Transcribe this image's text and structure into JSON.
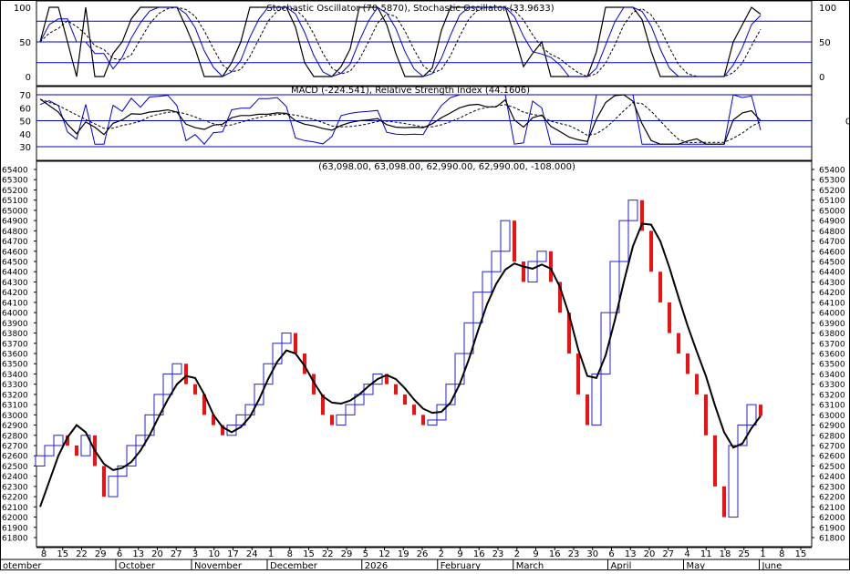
{
  "stoch_panel": {
    "title": "Stochastic Oscillator (70.5870), Stochastic Oscillator (33.9633)",
    "levels": [
      100,
      80,
      50,
      20,
      0
    ],
    "tick_labels": [
      "100",
      "50",
      "0"
    ]
  },
  "macd_panel": {
    "title": "MACD (-224.541), Relative Strength Index (44.1606)",
    "left_ticks": [
      "70",
      "60",
      "50",
      "40",
      "30"
    ],
    "right_ticks": [
      "0"
    ]
  },
  "price_panel": {
    "title": "(63,098.00, 63,098.00, 62,990.00, 62,990.00, -108.000)"
  },
  "colors": {
    "up_bar": "#2222cc",
    "down_bar": "#ee1111",
    "level_line": "#0000cc",
    "ma_line": "#000000",
    "frame": "#000000"
  },
  "x_axis": {
    "day_labels": [
      "8",
      "15",
      "22",
      "29",
      "6",
      "13",
      "20",
      "27",
      "3",
      "10",
      "17",
      "24",
      "1",
      "8",
      "15",
      "22",
      "29",
      "5",
      "12",
      "19",
      "26",
      "2",
      "9",
      "16",
      "23",
      "2",
      "9",
      "16",
      "23",
      "30",
      "6",
      "13",
      "20",
      "27",
      "4",
      "11",
      "18",
      "25",
      "1",
      "8",
      "15"
    ],
    "month_labels": [
      "otember",
      "October",
      "November",
      "December",
      "2026",
      "February",
      "March",
      "April",
      "May",
      "June"
    ]
  },
  "chart_data": {
    "type": "bar",
    "series": [
      {
        "name": "Stochastic Oscillator",
        "value": 70.587
      },
      {
        "name": "Stochastic Oscillator",
        "value": 33.9633
      },
      {
        "name": "MACD",
        "value": -224.541
      },
      {
        "name": "Relative Strength Index",
        "value": 44.1606
      }
    ],
    "last_bar": {
      "open": 63098.0,
      "high": 63098.0,
      "low": 62990.0,
      "close": 62990.0,
      "change": -108.0
    },
    "y_ticks": [
      "65400",
      "65300",
      "65200",
      "65100",
      "65000",
      "64900",
      "64800",
      "64700",
      "64600",
      "64500",
      "64400",
      "64300",
      "64200",
      "64100",
      "64000",
      "63900",
      "63800",
      "63700",
      "63600",
      "63500",
      "63400",
      "63300",
      "63200",
      "63100",
      "63000",
      "62900",
      "62800",
      "62700",
      "62600",
      "62500",
      "62400",
      "62300",
      "62200",
      "62100",
      "62000",
      "61900",
      "61800"
    ],
    "ylim": [
      61800,
      65400
    ],
    "closes": [
      62600,
      62700,
      62800,
      62700,
      62600,
      62800,
      62500,
      62200,
      62400,
      62500,
      62700,
      62800,
      63000,
      63200,
      63400,
      63500,
      63300,
      63200,
      63000,
      62900,
      62800,
      62900,
      63000,
      63100,
      63300,
      63500,
      63700,
      63800,
      63600,
      63400,
      63200,
      63000,
      62900,
      63000,
      63100,
      63200,
      63300,
      63400,
      63300,
      63200,
      63100,
      63000,
      62900,
      62950,
      63100,
      63300,
      63600,
      63900,
      64200,
      64400,
      64600,
      64900,
      64500,
      64300,
      64500,
      64600,
      64300,
      64000,
      63600,
      63200,
      62900,
      63400,
      64000,
      64500,
      64900,
      65100,
      64800,
      64400,
      64100,
      63800,
      63600,
      63400,
      63200,
      62800,
      62300,
      62000,
      62700,
      62900,
      63100,
      62990
    ],
    "ma": [
      62100,
      62350,
      62600,
      62780,
      62900,
      62830,
      62650,
      62520,
      62460,
      62480,
      62540,
      62650,
      62800,
      62980,
      63150,
      63300,
      63380,
      63360,
      63200,
      63000,
      62880,
      62830,
      62880,
      62980,
      63150,
      63350,
      63520,
      63630,
      63600,
      63480,
      63320,
      63180,
      63120,
      63110,
      63140,
      63200,
      63280,
      63350,
      63390,
      63350,
      63260,
      63150,
      63060,
      63020,
      63030,
      63120,
      63300,
      63540,
      63820,
      64080,
      64280,
      64420,
      64480,
      64450,
      64430,
      64470,
      64430,
      64250,
      63980,
      63640,
      63380,
      63360,
      63580,
      63920,
      64300,
      64650,
      64870,
      64860,
      64700,
      64440,
      64150,
      63870,
      63620,
      63380,
      63090,
      62830,
      62680,
      62720,
      62870,
      62990
    ]
  }
}
